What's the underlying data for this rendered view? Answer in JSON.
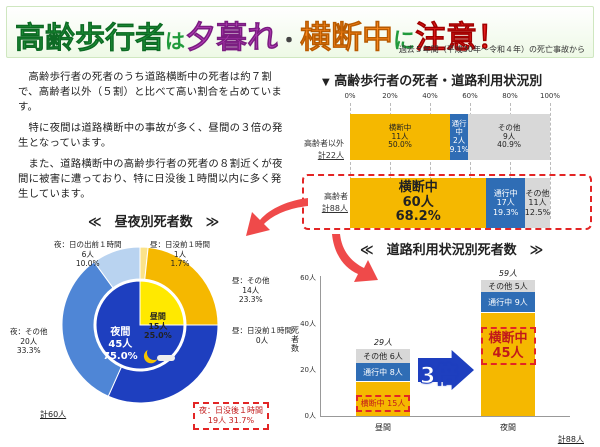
{
  "header": {
    "title_part1": "高齢歩行者",
    "title_part2": "は",
    "title_part3": "夕暮れ",
    "title_part4": "・",
    "title_part5": "横断中",
    "title_part6": "に",
    "title_part7": "注意！",
    "source_note": "過去５年間（平成30年～令和４年）の死亡事故から"
  },
  "paragraphs": [
    "高齢歩行者の死者のうち道路横断中の死者は約７割で、高齢者以外（５割）と比べて高い割合を占めています。",
    "特に夜間は道路横断中の事故が多く、昼間の３倍の発生となっています。",
    "また、道路横断中の高齢歩行者の死者の８割近くが夜間に被害に遭っており、特に日没後１時間以内に多く発生しています。"
  ],
  "sections": {
    "usage_status": "高齢歩行者の死者・道路利用状況別",
    "day_night": "≪　昼夜別死者数　≫",
    "usage_count": "≪　道路利用状況別死者数　≫"
  },
  "colors": {
    "crossing": "#f5b800",
    "passing": "#2f6db5",
    "other": "#d8d8d8",
    "night_dark": "#1e3fbf",
    "night_mid": "#4f86d6",
    "night_light": "#b9d3f0",
    "day_yellow": "#f5b800",
    "day_light": "#fbe38a",
    "highlight": "#e32525"
  },
  "chart_data": [
    {
      "type": "bar",
      "orientation": "horizontal-stacked-percent",
      "axis_ticks": [
        "0%",
        "20%",
        "40%",
        "60%",
        "80%",
        "100%"
      ],
      "rows": [
        {
          "name": "高齢者以外",
          "total": "計22人",
          "segments": [
            {
              "name": "横断中",
              "count": "11人",
              "percent": "50.0%",
              "value": 50.0
            },
            {
              "name": "通行中",
              "count": "2人",
              "percent": "9.1%",
              "value": 9.1
            },
            {
              "name": "その他",
              "count": "9人",
              "percent": "40.9%",
              "value": 40.9
            }
          ]
        },
        {
          "name": "高齢者",
          "total": "計88人",
          "segments": [
            {
              "name": "横断中",
              "count": "60人",
              "percent": "68.2%",
              "value": 68.2
            },
            {
              "name": "通行中",
              "count": "17人",
              "percent": "19.3%",
              "value": 19.3
            },
            {
              "name": "その他",
              "count": "11人",
              "percent": "12.5%",
              "value": 12.5
            }
          ]
        }
      ]
    },
    {
      "type": "pie",
      "total": "計60人",
      "inner": [
        {
          "label": "昼間",
          "count": "15人",
          "percent": "25.0%",
          "value": 15
        },
        {
          "label": "夜間",
          "count": "45人",
          "percent": "75.0%",
          "value": 45
        }
      ],
      "outer": [
        {
          "label": "昼：日没前１時間",
          "count": "1人",
          "percent": "1.7%",
          "value": 1
        },
        {
          "label": "昼：その他",
          "count": "14人",
          "percent": "23.3%",
          "value": 14
        },
        {
          "label": "昼：日没前１時間",
          "count": "0人",
          "value": 0
        },
        {
          "label": "夜：日没後１時間",
          "count": "19人",
          "percent": "31.7%",
          "value": 19
        },
        {
          "label": "夜：その他",
          "count": "20人",
          "percent": "33.3%",
          "value": 20
        },
        {
          "label": "夜：日の出前１時間",
          "count": "6人",
          "percent": "10.0%",
          "value": 6
        }
      ]
    },
    {
      "type": "bar",
      "orientation": "vertical-stacked",
      "ylabel": "死者数",
      "ylim": [
        0,
        60
      ],
      "yticks": [
        "0人",
        "20人",
        "40人",
        "60人"
      ],
      "categories": [
        "昼間",
        "夜間"
      ],
      "totals": [
        "29人",
        "59人"
      ],
      "series": [
        {
          "name": "横断中",
          "values": [
            15,
            45
          ],
          "labels": [
            "横断中 15人",
            "横断中"
          ],
          "big_value": "45人"
        },
        {
          "name": "通行中",
          "values": [
            8,
            9
          ],
          "labels": [
            "通行中 8人",
            "通行中 9人"
          ]
        },
        {
          "name": "その他",
          "values": [
            6,
            5
          ],
          "labels": [
            "その他 6人",
            "その他 5人"
          ]
        }
      ],
      "callout": "3倍",
      "total": "計88人"
    }
  ]
}
